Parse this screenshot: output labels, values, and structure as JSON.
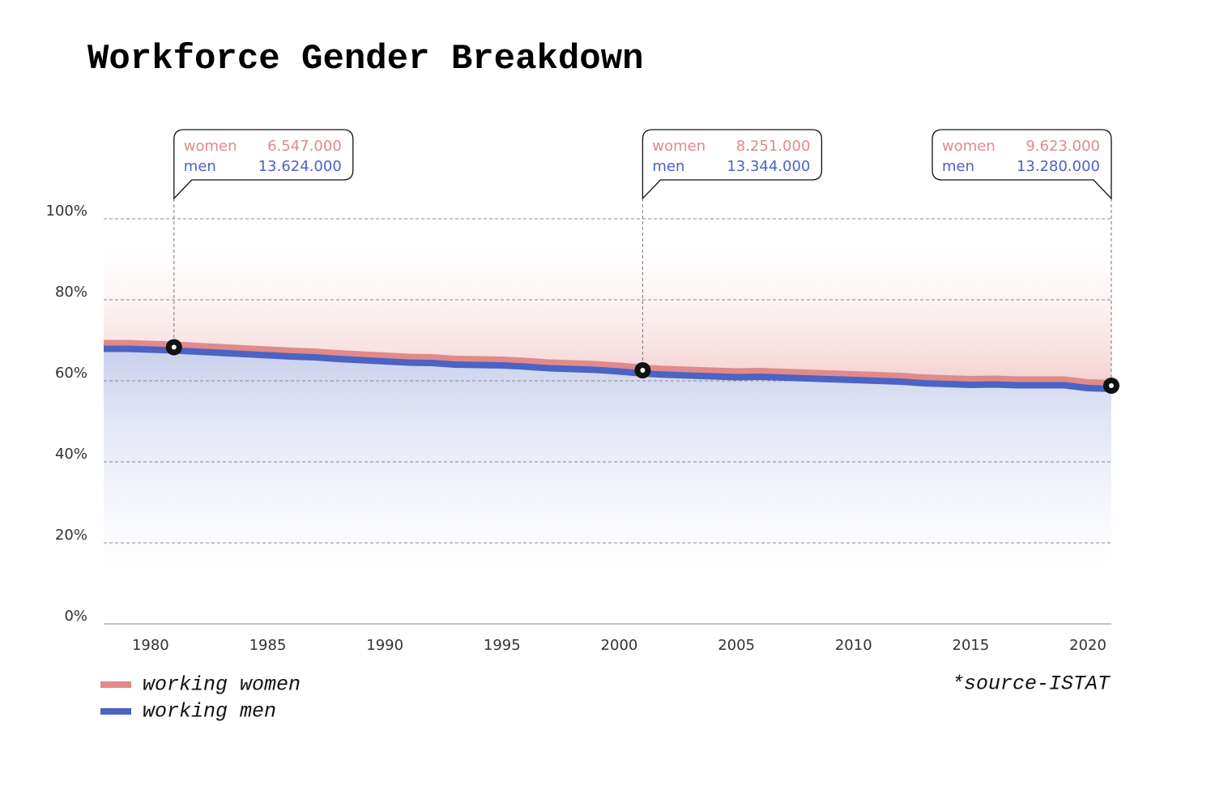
{
  "chart_data": {
    "type": "stacked-area",
    "title": "Workforce Gender Breakdown",
    "source": "*source-ISTAT",
    "x": [
      1978,
      1979,
      1980,
      1981,
      1982,
      1983,
      1984,
      1985,
      1986,
      1987,
      1988,
      1989,
      1990,
      1991,
      1992,
      1993,
      1994,
      1995,
      1996,
      1997,
      1998,
      1999,
      2000,
      2001,
      2002,
      2003,
      2004,
      2005,
      2006,
      2007,
      2008,
      2009,
      2010,
      2011,
      2012,
      2013,
      2014,
      2015,
      2016,
      2017,
      2018,
      2019,
      2020,
      2021
    ],
    "series": [
      {
        "name": "working women",
        "color": "#e08a8a",
        "values": [
          32.1,
          32.1,
          32.3,
          32.5,
          32.8,
          33.1,
          33.4,
          33.7,
          34.0,
          34.2,
          34.6,
          34.9,
          35.2,
          35.5,
          35.6,
          36.0,
          36.1,
          36.2,
          36.5,
          36.9,
          37.1,
          37.3,
          37.7,
          38.2,
          38.5,
          38.7,
          38.9,
          39.1,
          39.0,
          39.2,
          39.4,
          39.6,
          39.8,
          40.0,
          40.2,
          40.6,
          40.8,
          41.0,
          40.9,
          41.1,
          41.1,
          41.1,
          41.8,
          42.0
        ]
      },
      {
        "name": "working men",
        "color": "#4a63c4",
        "values": [
          67.9,
          67.9,
          67.7,
          67.5,
          67.2,
          66.9,
          66.6,
          66.3,
          66.0,
          65.8,
          65.4,
          65.1,
          64.8,
          64.5,
          64.4,
          64.0,
          63.9,
          63.8,
          63.5,
          63.1,
          62.9,
          62.7,
          62.3,
          61.8,
          61.5,
          61.3,
          61.1,
          60.9,
          61.0,
          60.8,
          60.6,
          60.4,
          60.2,
          60.0,
          59.8,
          59.4,
          59.2,
          59.0,
          59.1,
          58.9,
          58.9,
          58.9,
          58.2,
          58.0
        ]
      }
    ],
    "xlim": [
      1978,
      2021
    ],
    "xticks": [
      1980,
      1985,
      1990,
      1995,
      2000,
      2005,
      2010,
      2015,
      2020
    ],
    "ylim": [
      0,
      100
    ],
    "yticks": [
      {
        "value": 0,
        "label": "0%"
      },
      {
        "value": 20,
        "label": "20%"
      },
      {
        "value": 40,
        "label": "40%"
      },
      {
        "value": 60,
        "label": "60%"
      },
      {
        "value": 80,
        "label": "80%"
      },
      {
        "value": 100,
        "label": "100%"
      }
    ],
    "grid": true,
    "callout_names": [
      "women",
      "men"
    ],
    "callouts": [
      {
        "x": 1981,
        "women": 6547000,
        "women_label": "6.547.000",
        "men": 13624000,
        "men_label": "13.624.000"
      },
      {
        "x": 2001,
        "women": 8251000,
        "women_label": "8.251.000",
        "men": 13344000,
        "men_label": "13.344.000"
      },
      {
        "x": 2021,
        "women": 9623000,
        "women_label": "9.623.000",
        "men": 13280000,
        "men_label": "13.280.000"
      }
    ]
  }
}
